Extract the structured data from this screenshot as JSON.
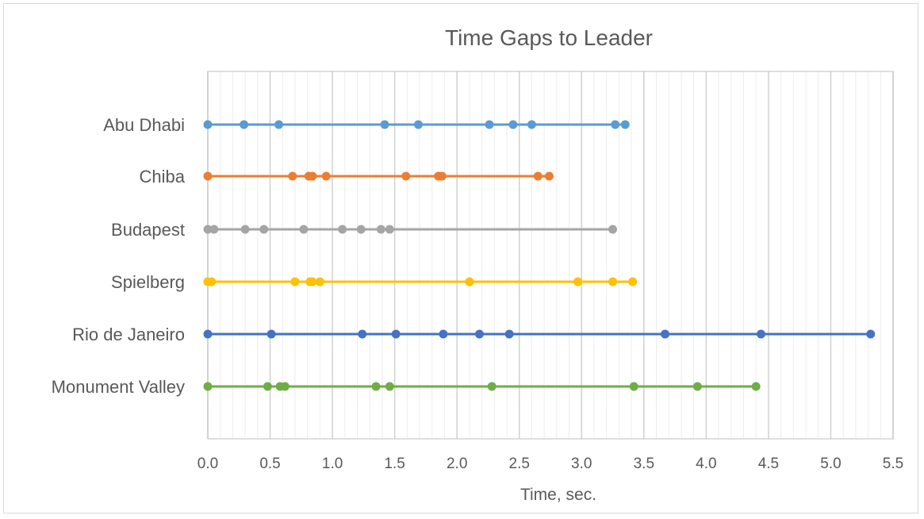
{
  "chart_data": {
    "type": "scatter",
    "title": "Time Gaps to Leader",
    "xlabel": "Time, sec.",
    "ylabel": "",
    "xlim": [
      0,
      5.5
    ],
    "xticks": [
      "0.0",
      "0.5",
      "1.0",
      "1.5",
      "2.0",
      "2.5",
      "3.0",
      "3.5",
      "4.0",
      "4.5",
      "5.0",
      "5.5"
    ],
    "grid": {
      "major_x": 0.5,
      "minor_x": 0.1
    },
    "legend": "none",
    "series": [
      {
        "name": "Abu Dhabi",
        "color": "#5b9bd5",
        "values": [
          0,
          0.29,
          0.57,
          1.42,
          1.69,
          2.26,
          2.45,
          2.6,
          3.27,
          3.35
        ]
      },
      {
        "name": "Chiba",
        "color": "#ed7d31",
        "values": [
          0,
          0.68,
          0.81,
          0.84,
          0.95,
          1.59,
          1.85,
          1.88,
          2.65,
          2.74
        ]
      },
      {
        "name": "Budapest",
        "color": "#a5a5a5",
        "values": [
          0,
          0.05,
          0.3,
          0.45,
          0.77,
          1.08,
          1.23,
          1.39,
          1.46,
          3.25
        ]
      },
      {
        "name": "Spielberg",
        "color": "#ffc000",
        "values": [
          0,
          0.03,
          0.7,
          0.82,
          0.84,
          0.9,
          2.1,
          2.97,
          3.25,
          3.41
        ]
      },
      {
        "name": "Rio de Janeiro",
        "color": "#4472c4",
        "values": [
          0,
          0.51,
          1.24,
          1.51,
          1.89,
          2.18,
          2.42,
          3.67,
          4.44,
          5.32
        ]
      },
      {
        "name": "Monument Valley",
        "color": "#70ad47",
        "values": [
          0,
          0.48,
          0.58,
          0.62,
          1.35,
          1.46,
          2.28,
          3.42,
          3.93,
          4.4
        ]
      }
    ]
  }
}
